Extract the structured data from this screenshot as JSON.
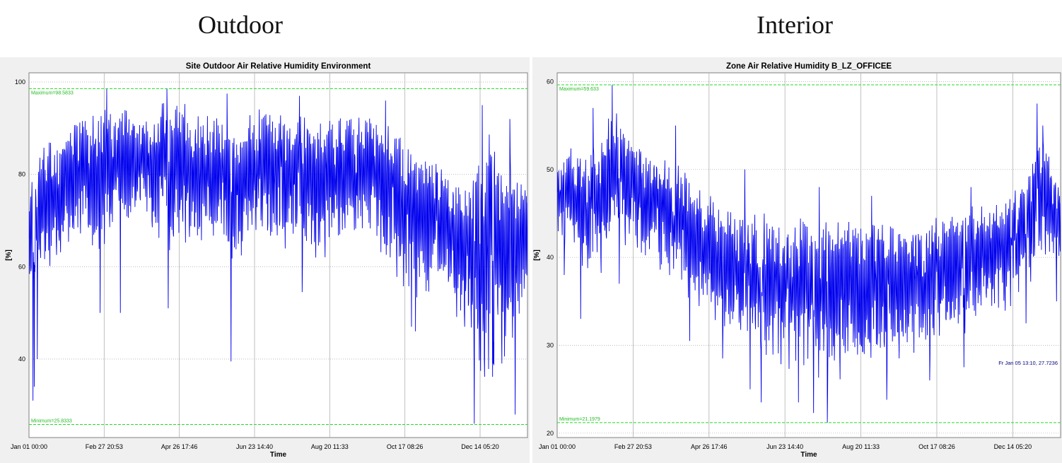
{
  "headings": {
    "left": "Outdoor",
    "right": "Interior"
  },
  "chart_data": [
    {
      "type": "line",
      "title": "Site Outdoor Air Relative Humidity  Environment",
      "xlabel": "Time",
      "ylabel": "[%]",
      "ylim": [
        23,
        102
      ],
      "yticks": [
        40,
        60,
        80,
        100
      ],
      "ytick_labels": [
        "40",
        "60",
        "80",
        "100"
      ],
      "xticks": [
        "Jan 01 00:00",
        "Feb 27 20:53",
        "Apr 26 17:46",
        "Jun 23 14:40",
        "Aug 20 11:33",
        "Oct 17 08:26",
        "Dec 14 05:20"
      ],
      "xlim_days": [
        0,
        365
      ],
      "grid": true,
      "maximum": {
        "label": "Maximum=98.5833",
        "value": 98.5833
      },
      "minimum": {
        "label": "Minimum=25.8333",
        "value": 25.8333
      },
      "series": [
        {
          "color": "#0000ee",
          "envelope_days": [
            0,
            10,
            20,
            35,
            50,
            60,
            75,
            90,
            105,
            120,
            135,
            150,
            165,
            175,
            190,
            205,
            220,
            235,
            250,
            265,
            280,
            290,
            300,
            310,
            320,
            330,
            340,
            350,
            357,
            365
          ],
          "envelope_high": [
            78,
            88,
            90,
            94,
            96,
            97,
            95,
            96,
            98,
            97,
            96,
            92,
            96,
            97,
            93,
            96,
            95,
            94,
            95,
            93,
            88,
            87,
            85,
            83,
            80,
            90,
            96,
            84,
            82,
            80
          ],
          "envelope_low": [
            52,
            55,
            58,
            65,
            60,
            62,
            66,
            62,
            60,
            62,
            64,
            56,
            62,
            60,
            62,
            58,
            60,
            62,
            64,
            55,
            48,
            50,
            52,
            48,
            42,
            32,
            28,
            34,
            42,
            52
          ],
          "dips": [
            [
              3,
              31
            ],
            [
              4,
              34
            ],
            [
              6,
              40
            ],
            [
              52,
              50
            ],
            [
              67,
              50
            ],
            [
              102,
              51
            ],
            [
              148,
              39.5
            ],
            [
              200,
              54.5
            ],
            [
              280,
              47
            ],
            [
              283,
              46
            ],
            [
              319,
              47
            ],
            [
              326,
              26
            ],
            [
              340,
              39
            ],
            [
              352,
              27
            ],
            [
              356,
              28
            ]
          ],
          "peaks": [
            [
              57,
              98.5
            ],
            [
              101,
              98.6
            ],
            [
              145,
              97.5
            ],
            [
              198,
              97
            ],
            [
              261,
              96
            ],
            [
              332,
              95
            ],
            [
              352,
              92
            ]
          ]
        }
      ]
    },
    {
      "type": "line",
      "title": "Zone Air Relative Humidity  B_LZ_OFFICEE",
      "xlabel": "Time",
      "ylabel": "[%]",
      "ylim": [
        19.5,
        61
      ],
      "yticks": [
        20,
        30,
        40,
        50,
        60
      ],
      "ytick_labels": [
        "20",
        "30",
        "40",
        "50",
        "60"
      ],
      "xticks": [
        "Jan 01 00:00",
        "Feb 27 20:53",
        "Apr 26 17:46",
        "Jun 23 14:40",
        "Aug 20 11:33",
        "Oct 17 08:26",
        "Dec 14 05:20"
      ],
      "xlim_days": [
        0,
        365
      ],
      "grid": true,
      "maximum": {
        "label": "Maximum=59.633",
        "value": 59.633
      },
      "minimum": {
        "label": "Minimum=21.1979",
        "value": 21.1979
      },
      "annotation": {
        "text": "Fr Jan 05 13:10, 27.7236"
      },
      "series": [
        {
          "color": "#0000ee",
          "envelope_days": [
            0,
            10,
            20,
            30,
            40,
            50,
            60,
            70,
            80,
            90,
            100,
            110,
            120,
            135,
            150,
            165,
            180,
            195,
            210,
            225,
            240,
            255,
            270,
            285,
            300,
            315,
            330,
            340,
            350,
            358,
            365
          ],
          "envelope_high": [
            52,
            54,
            53,
            54,
            58,
            55,
            54,
            53,
            52,
            51,
            49,
            48,
            47,
            46,
            46,
            45,
            46,
            45,
            46,
            45,
            46,
            45,
            46,
            46,
            47,
            47,
            48,
            50,
            54,
            52,
            48
          ],
          "envelope_low": [
            40,
            39,
            38,
            37,
            39,
            40,
            38,
            37,
            36,
            35,
            33,
            32,
            31,
            29,
            27,
            26,
            25,
            24,
            24,
            25,
            26,
            27,
            28,
            29,
            31,
            32,
            33,
            35,
            38,
            39,
            37
          ],
          "dips": [
            [
              5,
              38
            ],
            [
              17,
              33
            ],
            [
              45,
              37
            ],
            [
              96,
              30.5
            ],
            [
              120,
              28.5
            ],
            [
              140,
              25
            ],
            [
              148,
              23.5
            ],
            [
              175,
              23.5
            ],
            [
              186,
              22.3
            ],
            [
              196,
              21.2
            ],
            [
              228,
              22.5
            ],
            [
              239,
              23.8
            ],
            [
              270,
              26
            ],
            [
              295,
              27.5
            ],
            [
              340,
              32.5
            ],
            [
              362,
              35
            ]
          ],
          "peaks": [
            [
              26,
              57
            ],
            [
              40,
              59.6
            ],
            [
              86,
              55
            ],
            [
              136,
              50
            ],
            [
              190,
              48
            ],
            [
              228,
              47
            ],
            [
              300,
              48
            ],
            [
              348,
              57.5
            ],
            [
              352,
              55
            ]
          ]
        }
      ]
    }
  ]
}
